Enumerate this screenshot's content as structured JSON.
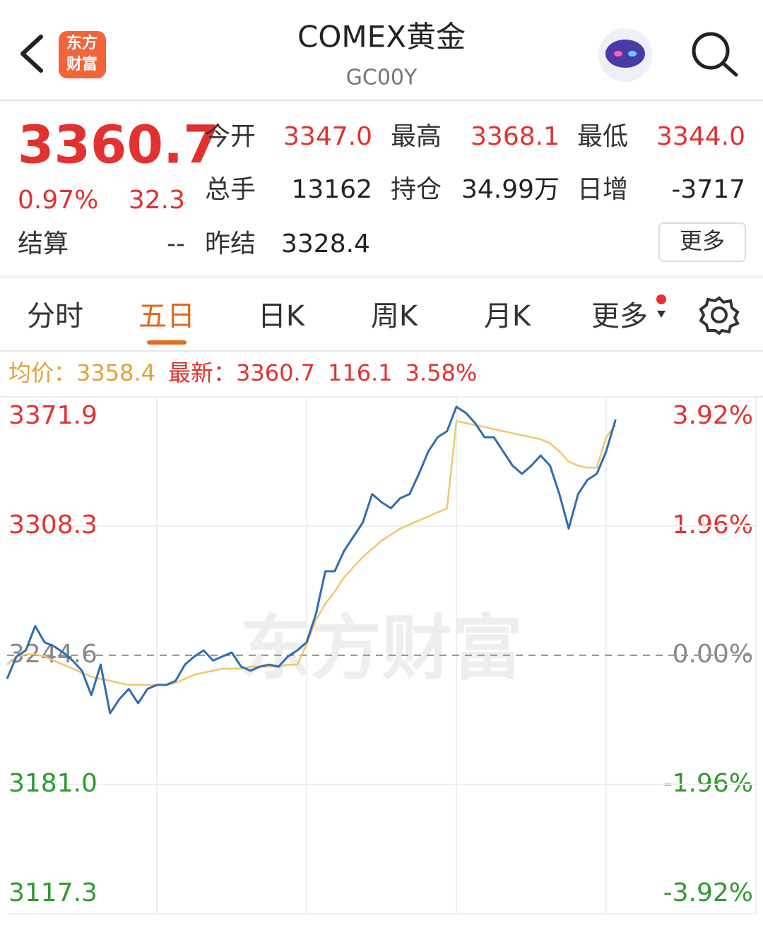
{
  "header": {
    "title": "COMEX黄金",
    "code": "GC00Y",
    "logo": [
      "东方",
      "财富"
    ]
  },
  "quote": {
    "price": "3360.7",
    "change_pct": "0.97%",
    "change": "32.3",
    "settle_label": "结算",
    "settle_value": "--",
    "fields": [
      {
        "label": "今开",
        "value": "3347.0"
      },
      {
        "label": "最高",
        "value": "3368.1"
      },
      {
        "label": "最低",
        "value": "3344.0"
      },
      {
        "label": "总手",
        "value": "13162"
      },
      {
        "label": "持仓",
        "value": "34.99万"
      },
      {
        "label": "日增",
        "value": "-3717"
      },
      {
        "label": "昨结",
        "value": "3328.4"
      }
    ],
    "more": "更多"
  },
  "tabs": {
    "items": [
      "分时",
      "五日",
      "日K",
      "周K",
      "月K",
      "更多"
    ],
    "active": 1
  },
  "info": {
    "avg_label": "均价：",
    "avg_value": "3358.4",
    "latest_label": "最新：",
    "latest_value": "3360.7",
    "change": "116.1",
    "change_pct": "3.58%"
  },
  "chart_data": {
    "type": "line",
    "watermark": "东方财富",
    "ylim": [
      3117.3,
      3371.9
    ],
    "yticks": [
      3117.3,
      {
        "value": 3181.0,
        "label": "3181.0"
      },
      3244.6,
      3308.3,
      3371.9
    ],
    "y2lim": [
      -3.92,
      3.92
    ],
    "y2ticks": [
      {
        "value": -3.92,
        "label": "-3.92%"
      },
      {
        "value": -1.96,
        "label": "-1.96%"
      },
      {
        "value": 0,
        "label": "0.00%"
      },
      {
        "value": 1.96,
        "label": "1.96%"
      },
      {
        "value": 3.92,
        "label": "3.92%"
      }
    ],
    "xlim": [
      0,
      80
    ],
    "xticks": [
      16,
      32,
      48,
      64
    ],
    "grid": true,
    "x": [
      0,
      1,
      2,
      3,
      4,
      5,
      6,
      7,
      8,
      9,
      10,
      11,
      12,
      13,
      14,
      15,
      16,
      17,
      18,
      19,
      20,
      21,
      22,
      23,
      24,
      25,
      26,
      27,
      28,
      29,
      30,
      31,
      32,
      33,
      34,
      35,
      36,
      37,
      38,
      39,
      40,
      41,
      42,
      43,
      44,
      45,
      46,
      47,
      48,
      49,
      50,
      51,
      52,
      53,
      54,
      55,
      56,
      57,
      58,
      59,
      60,
      61,
      62,
      63,
      64,
      65
    ],
    "series": [
      {
        "color": "#2f6db3",
        "values": [
          3233,
          3244,
          3247,
          3259,
          3251,
          3249,
          3246,
          3242,
          3237,
          3225,
          3240,
          3216,
          3223,
          3228,
          3221,
          3228,
          3230,
          3230,
          3232,
          3240,
          3244,
          3247,
          3242,
          3244,
          3246,
          3239,
          3237,
          3239,
          3240,
          3239,
          3244,
          3247,
          3251,
          3265,
          3286,
          3286,
          3296,
          3303,
          3310,
          3324,
          3320,
          3317,
          3322,
          3324,
          3334,
          3345,
          3352,
          3355,
          3367,
          3364,
          3359,
          3352,
          3352,
          3345,
          3338,
          3334,
          3338,
          3343,
          3338,
          3324,
          3307,
          3324,
          3331,
          3334,
          3345,
          3360.7
        ]
      },
      {
        "color": "#f2c66d",
        "values": [
          3240,
          3244,
          3245,
          3245,
          3244,
          3242,
          3240,
          3238,
          3236,
          3234,
          3233,
          3232,
          3231,
          3230,
          3230,
          3230,
          3230,
          3230,
          3231,
          3233,
          3235,
          3236,
          3237,
          3238,
          3238,
          3238,
          3239,
          3239,
          3239,
          3239,
          3240,
          3240,
          3250,
          3262,
          3270,
          3276,
          3283,
          3288,
          3293,
          3297,
          3301,
          3304,
          3307,
          3309,
          3311,
          3313,
          3315,
          3317,
          3360,
          3359,
          3358,
          3357,
          3356,
          3355,
          3354,
          3353,
          3352,
          3351,
          3349,
          3345,
          3340,
          3338,
          3337,
          3337,
          3352,
          3358
        ]
      }
    ]
  }
}
